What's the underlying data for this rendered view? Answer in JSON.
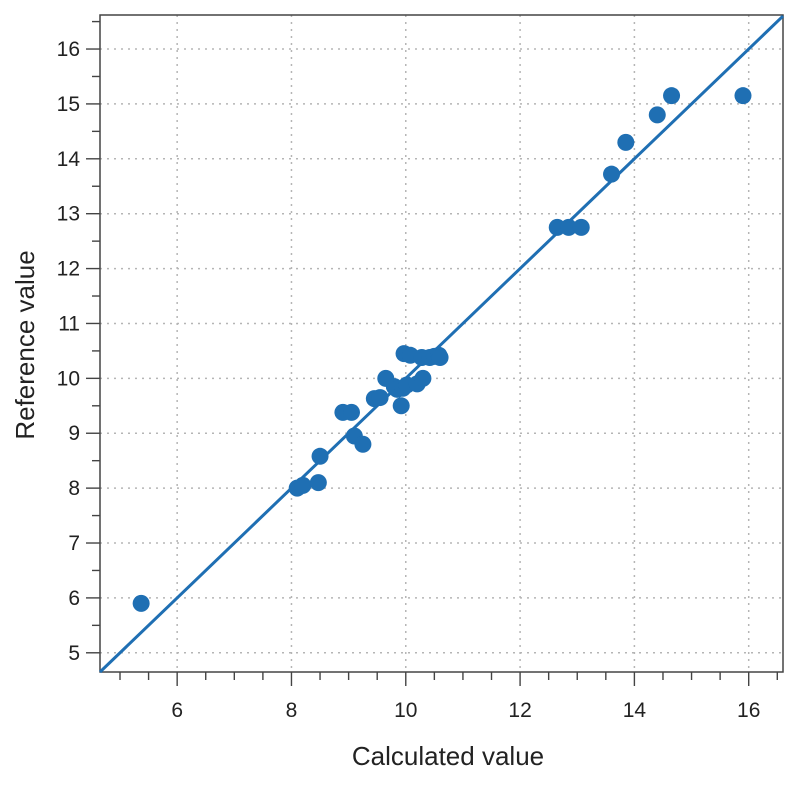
{
  "chart_data": {
    "type": "scatter",
    "title": "",
    "xlabel": "Calculated value",
    "ylabel": "Reference value",
    "xlim": [
      4.65,
      16.6
    ],
    "ylim": [
      4.65,
      16.62
    ],
    "x_ticks": [
      6,
      8,
      10,
      12,
      14,
      16
    ],
    "x_tick_labels": [
      "6",
      "8",
      "10",
      "12",
      "14",
      "16"
    ],
    "y_ticks": [
      5,
      6,
      7,
      8,
      9,
      10,
      11,
      12,
      13,
      14,
      15,
      16
    ],
    "y_tick_labels": [
      "5",
      "6",
      "7",
      "8",
      "9",
      "10",
      "11",
      "12",
      "13",
      "14",
      "15",
      "16"
    ],
    "grid": true,
    "legend": "none",
    "colors": {
      "series": "#1f6fb3",
      "grid": "#b5b5b5",
      "axis": "#444444"
    },
    "series": [
      {
        "x": [
          5.37,
          8.1,
          8.2,
          8.47,
          8.5,
          8.9,
          9.05,
          9.1,
          9.25,
          9.45,
          9.55,
          9.65,
          9.8,
          9.85,
          9.92,
          9.95,
          9.97,
          10.02,
          10.08,
          10.2,
          10.28,
          10.3,
          10.42,
          10.5,
          10.58,
          10.6,
          12.65,
          12.85,
          13.07,
          13.6,
          13.85,
          14.4,
          14.65,
          15.9
        ],
        "y": [
          5.9,
          8.0,
          8.05,
          8.1,
          8.58,
          9.38,
          9.38,
          8.95,
          8.8,
          9.63,
          9.65,
          10.0,
          9.85,
          9.8,
          9.5,
          9.82,
          10.45,
          9.88,
          10.42,
          9.9,
          10.38,
          10.0,
          10.38,
          10.4,
          10.42,
          10.38,
          12.75,
          12.75,
          12.75,
          13.72,
          14.3,
          14.8,
          15.15,
          15.15
        ]
      }
    ],
    "fit_line": {
      "slope": 1.0,
      "intercept": 0.0
    }
  }
}
